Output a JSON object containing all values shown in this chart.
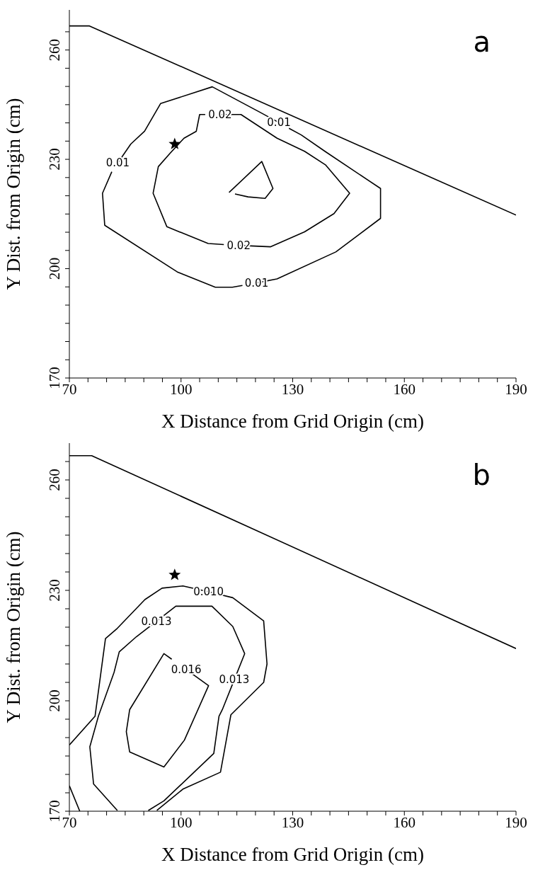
{
  "chart_data": [
    {
      "type": "line",
      "xlabel": "X Distance from Grid Origin (cm)",
      "ylabel": "Y Dist. from Origin (cm)",
      "xlim": [
        70,
        190
      ],
      "ylim": [
        170,
        271
      ],
      "xticks": [
        70,
        {
          "value": 75,
          "label": null
        },
        {
          "value": 80,
          "label": null
        },
        {
          "value": 85,
          "label": null
        },
        {
          "value": 90,
          "label": null
        },
        {
          "value": 95,
          "label": null
        },
        100,
        {
          "value": 105,
          "label": null
        },
        {
          "value": 110,
          "label": null
        },
        {
          "value": 115,
          "label": null
        },
        {
          "value": 120,
          "label": null
        },
        {
          "value": 125,
          "label": null
        },
        130,
        {
          "value": 135,
          "label": null
        },
        {
          "value": 140,
          "label": null
        },
        {
          "value": 145,
          "label": null
        },
        {
          "value": 150,
          "label": null
        },
        {
          "value": 155,
          "label": null
        },
        160,
        {
          "value": 165,
          "label": null
        },
        {
          "value": 170,
          "label": null
        },
        {
          "value": 175,
          "label": null
        },
        {
          "value": 180,
          "label": null
        },
        {
          "value": 185,
          "label": null
        },
        190
      ],
      "yticks": [
        170,
        {
          "value": 175,
          "label": null
        },
        {
          "value": 180,
          "label": null
        },
        {
          "value": 185,
          "label": null
        },
        {
          "value": 190,
          "label": null
        },
        {
          "value": 195,
          "label": null
        },
        200,
        {
          "value": 205,
          "label": null
        },
        {
          "value": 210,
          "label": null
        },
        {
          "value": 215,
          "label": null
        },
        {
          "value": 220,
          "label": null
        },
        {
          "value": 225,
          "label": null
        },
        230,
        {
          "value": 235,
          "label": null
        },
        {
          "value": 240,
          "label": null
        },
        {
          "value": 245,
          "label": null
        },
        {
          "value": 250,
          "label": null
        },
        {
          "value": 255,
          "label": null
        },
        260,
        {
          "value": 265,
          "label": null
        }
      ],
      "annotations": [
        "a",
        {
          "text": "0.02",
          "x": 110.5,
          "y": 242.3
        },
        {
          "text": "0.01",
          "x": 126.3,
          "y": 240.1
        },
        {
          "text": "0.01",
          "x": 83.0,
          "y": 229.0
        },
        {
          "text": "0.02",
          "x": 115.5,
          "y": 206.4
        },
        {
          "text": "0.01",
          "x": 120.3,
          "y": 196.1
        }
      ],
      "series": [
        {
          "type": "line",
          "color": "#000000",
          "x": [
            70,
            75.4,
            190
          ],
          "values": [
            266.6,
            266.6,
            214.7
          ]
        },
        {
          "type": "line",
          "color": "#000000",
          "x": [
            83.0,
            86.5,
            90.2,
            94.5,
            108.4,
            120.7,
            126.3
          ],
          "values": [
            229.0,
            234.2,
            237.7,
            245.3,
            249.9,
            243.2,
            240.1
          ]
        },
        {
          "type": "line",
          "color": "#000000",
          "x": [
            129.0,
            132.3,
            138.8,
            153.6,
            153.6,
            141.6,
            125.8,
            120.3
          ],
          "values": [
            238.5,
            236.7,
            232.1,
            222.0,
            213.8,
            204.6,
            197.2,
            196.1
          ]
        },
        {
          "type": "line",
          "color": "#000000",
          "x": [
            116.5,
            113.8,
            109.2,
            99.0,
            79.5,
            78.9,
            81.4
          ],
          "values": [
            195.4,
            194.9,
            194.9,
            199.1,
            211.9,
            220.7,
            226.6
          ]
        },
        {
          "type": "line",
          "color": "#000000",
          "x": [
            110.5,
            116.1,
            125.8,
            133.2,
            138.8,
            145.3,
            141.1,
            133.2,
            124.0,
            115.5
          ],
          "values": [
            242.3,
            242.3,
            235.8,
            232.2,
            228.5,
            220.7,
            215.1,
            210.1,
            206.0,
            206.4
          ]
        },
        {
          "type": "line",
          "color": "#000000",
          "x": [
            111.5,
            107.3,
            96.2,
            92.5,
            93.9,
            97.1,
            100.8,
            104.1,
            105.0,
            106.5
          ],
          "values": [
            206.6,
            206.9,
            211.5,
            220.7,
            228.0,
            231.7,
            235.8,
            237.7,
            242.3,
            242.3
          ]
        },
        {
          "type": "line",
          "color": "#000000",
          "x": [
            112.9,
            121.7,
            124.7,
            122.6,
            118.0,
            114.5
          ],
          "values": [
            220.9,
            229.4,
            222.0,
            219.3,
            219.7,
            220.5
          ]
        },
        {
          "type": "scatter",
          "marker": "star",
          "color": "#000000",
          "x": [
            98.3
          ],
          "values": [
            234.2
          ]
        }
      ]
    },
    {
      "type": "line",
      "xlabel": "X Distance from Grid Origin (cm)",
      "ylabel": "Y Dist. from Origin (cm)",
      "xlim": [
        70,
        190
      ],
      "ylim": [
        170,
        270
      ],
      "xticks": [
        70,
        {
          "value": 75,
          "label": null
        },
        {
          "value": 80,
          "label": null
        },
        {
          "value": 85,
          "label": null
        },
        {
          "value": 90,
          "label": null
        },
        {
          "value": 95,
          "label": null
        },
        100,
        {
          "value": 105,
          "label": null
        },
        {
          "value": 110,
          "label": null
        },
        {
          "value": 115,
          "label": null
        },
        {
          "value": 120,
          "label": null
        },
        {
          "value": 125,
          "label": null
        },
        130,
        {
          "value": 135,
          "label": null
        },
        {
          "value": 140,
          "label": null
        },
        {
          "value": 145,
          "label": null
        },
        {
          "value": 150,
          "label": null
        },
        {
          "value": 155,
          "label": null
        },
        160,
        {
          "value": 165,
          "label": null
        },
        {
          "value": 170,
          "label": null
        },
        {
          "value": 175,
          "label": null
        },
        {
          "value": 180,
          "label": null
        },
        {
          "value": 185,
          "label": null
        },
        190
      ],
      "yticks": [
        170,
        {
          "value": 175,
          "label": null
        },
        {
          "value": 180,
          "label": null
        },
        {
          "value": 185,
          "label": null
        },
        {
          "value": 190,
          "label": null
        },
        {
          "value": 195,
          "label": null
        },
        200,
        {
          "value": 205,
          "label": null
        },
        {
          "value": 210,
          "label": null
        },
        {
          "value": 215,
          "label": null
        },
        {
          "value": 220,
          "label": null
        },
        {
          "value": 225,
          "label": null
        },
        230,
        {
          "value": 235,
          "label": null
        },
        {
          "value": 240,
          "label": null
        },
        {
          "value": 245,
          "label": null
        },
        {
          "value": 250,
          "label": null
        },
        {
          "value": 255,
          "label": null
        },
        260,
        {
          "value": 265,
          "label": null
        }
      ],
      "annotations": [
        "b",
        {
          "text": "0.010",
          "x": 107.4,
          "y": 229.6
        },
        {
          "text": "0.013",
          "x": 93.4,
          "y": 221.6
        },
        {
          "text": "0.016",
          "x": 101.4,
          "y": 208.5
        },
        {
          "text": "0.013",
          "x": 114.3,
          "y": 205.7
        }
      ],
      "series": [
        {
          "type": "line",
          "color": "#000000",
          "x": [
            70,
            76.0,
            190
          ],
          "values": [
            266.6,
            266.6,
            214.2
          ]
        },
        {
          "type": "line",
          "color": "#000000",
          "x": [
            70,
            76.9,
            79.7,
            82.9,
            90.3,
            94.9,
            100.5,
            107.4,
            113.9,
            122.2,
            123.1,
            122.2,
            113.4,
            110.6,
            100.5,
            93.5
          ],
          "values": [
            188.0,
            195.8,
            216.9,
            219.7,
            227.5,
            230.6,
            231.2,
            229.6,
            228.0,
            221.7,
            210.0,
            205.0,
            196.2,
            180.6,
            176.0,
            170.2
          ]
        },
        {
          "type": "line",
          "color": "#000000",
          "x": [
            70,
            72.8
          ],
          "values": [
            176.9,
            170.0
          ]
        },
        {
          "type": "line",
          "color": "#000000",
          "x": [
            82.9,
            76.5,
            75.5,
            77.8,
            82.0,
            83.4,
            88.0,
            93.4,
            98.6,
            108.3,
            113.9,
            117.1,
            114.3,
            111.1,
            110.2,
            108.8,
            95.4,
            91.2
          ],
          "values": [
            170.2,
            177.4,
            187.5,
            195.8,
            207.7,
            213.3,
            217.4,
            221.6,
            225.7,
            225.7,
            220.2,
            212.8,
            205.7,
            197.6,
            195.8,
            185.7,
            172.8,
            170.2
          ]
        },
        {
          "type": "line",
          "color": "#000000",
          "x": [
            101.4,
            107.4,
            100.9,
            95.4,
            86.2,
            85.3,
            86.2,
            95.4,
            97.5
          ],
          "values": [
            208.5,
            204.1,
            189.3,
            182.0,
            186.1,
            191.6,
            197.6,
            212.8,
            211.3
          ]
        },
        {
          "type": "scatter",
          "marker": "star",
          "color": "#000000",
          "x": [
            98.3
          ],
          "values": [
            234.2
          ]
        }
      ]
    }
  ]
}
